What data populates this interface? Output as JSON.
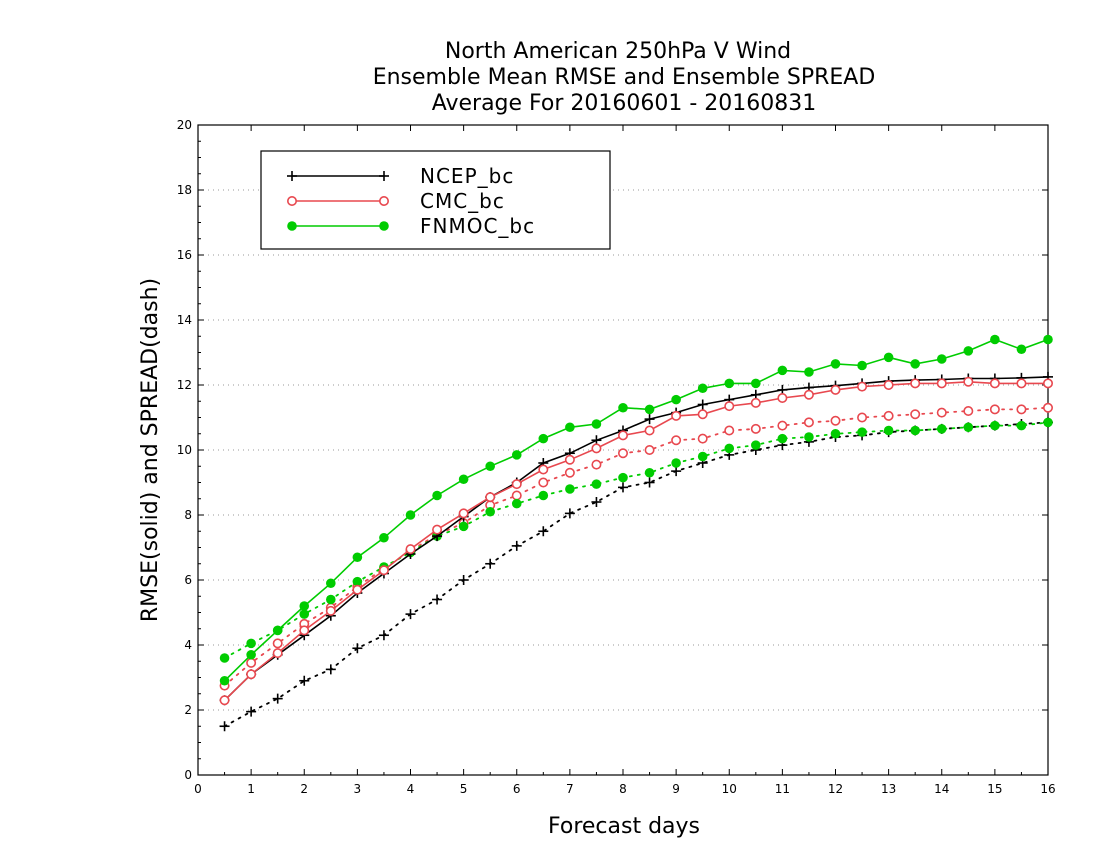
{
  "chart_data": {
    "type": "line",
    "title": [
      "North American 250hPa V Wind",
      "Ensemble Mean RMSE and Ensemble SPREAD",
      "Average For 20160601 - 20160831"
    ],
    "xlabel": "Forecast days",
    "ylabel": "RMSE(solid) and SPREAD(dash)",
    "xlim": [
      0,
      16
    ],
    "ylim": [
      0,
      20
    ],
    "xticks": [
      "0",
      "1",
      "2",
      "3",
      "4",
      "5",
      "6",
      "7",
      "8",
      "9",
      "10",
      "11",
      "12",
      "13",
      "14",
      "15",
      "16"
    ],
    "yticks": [
      "0",
      "2",
      "4",
      "6",
      "8",
      "10",
      "12",
      "14",
      "16",
      "18",
      "20"
    ],
    "grid": true,
    "legend_position": "top-left",
    "x": [
      0.5,
      1,
      1.5,
      2,
      2.5,
      3,
      3.5,
      4,
      4.5,
      5,
      5.5,
      6,
      6.5,
      7,
      7.5,
      8,
      8.5,
      9,
      9.5,
      10,
      10.5,
      11,
      11.5,
      12,
      12.5,
      13,
      13.5,
      14,
      14.5,
      15,
      15.5,
      16
    ],
    "series": [
      {
        "name": "NCEP_bc",
        "kind": "rmse",
        "line": "solid",
        "marker": "plus",
        "color": "#000000",
        "values": [
          2.3,
          3.1,
          3.7,
          4.3,
          4.9,
          5.6,
          6.2,
          6.8,
          7.35,
          7.95,
          8.55,
          9.0,
          9.6,
          9.9,
          10.3,
          10.6,
          10.95,
          11.15,
          11.4,
          11.55,
          11.7,
          11.85,
          11.92,
          11.98,
          12.05,
          12.12,
          12.15,
          12.17,
          12.2,
          12.2,
          12.22,
          12.25
        ]
      },
      {
        "name": "CMC_bc",
        "kind": "rmse",
        "line": "solid",
        "marker": "circle",
        "color": "#e8484f",
        "values": [
          2.3,
          3.1,
          3.75,
          4.45,
          5.05,
          5.7,
          6.3,
          6.95,
          7.55,
          8.05,
          8.55,
          8.95,
          9.4,
          9.7,
          10.05,
          10.45,
          10.6,
          11.05,
          11.1,
          11.35,
          11.45,
          11.6,
          11.7,
          11.85,
          11.95,
          12.0,
          12.05,
          12.05,
          12.1,
          12.05,
          12.05,
          12.05
        ]
      },
      {
        "name": "FNMOC_bc",
        "kind": "rmse",
        "line": "solid",
        "marker": "dot",
        "color": "#00cc00",
        "values": [
          2.9,
          3.7,
          4.45,
          5.2,
          5.9,
          6.7,
          7.3,
          8.0,
          8.6,
          9.1,
          9.5,
          9.85,
          10.35,
          10.7,
          10.8,
          11.3,
          11.25,
          11.55,
          11.9,
          12.05,
          12.05,
          12.45,
          12.4,
          12.65,
          12.6,
          12.85,
          12.65,
          12.8,
          13.05,
          13.4,
          13.1,
          13.4
        ]
      },
      {
        "name": "NCEP_bc",
        "kind": "spread",
        "line": "dash",
        "marker": "plus",
        "color": "#000000",
        "values": [
          1.5,
          1.95,
          2.35,
          2.9,
          3.25,
          3.9,
          4.3,
          4.95,
          5.4,
          6.0,
          6.5,
          7.05,
          7.5,
          8.05,
          8.4,
          8.85,
          9.0,
          9.35,
          9.6,
          9.85,
          10.0,
          10.15,
          10.25,
          10.4,
          10.45,
          10.55,
          10.6,
          10.65,
          10.7,
          10.75,
          10.8,
          10.85
        ]
      },
      {
        "name": "CMC_bc",
        "kind": "spread",
        "line": "dash",
        "marker": "circle",
        "color": "#e8484f",
        "values": [
          2.75,
          3.45,
          4.05,
          4.65,
          5.15,
          5.8,
          6.35,
          6.9,
          7.4,
          7.75,
          8.3,
          8.6,
          9.0,
          9.3,
          9.55,
          9.9,
          10.0,
          10.3,
          10.35,
          10.6,
          10.65,
          10.75,
          10.85,
          10.9,
          11.0,
          11.05,
          11.1,
          11.15,
          11.2,
          11.25,
          11.25,
          11.3
        ]
      },
      {
        "name": "FNMOC_bc",
        "kind": "spread",
        "line": "dash",
        "marker": "dot",
        "color": "#00cc00",
        "values": [
          3.6,
          4.05,
          4.45,
          4.95,
          5.4,
          5.95,
          6.4,
          6.85,
          7.35,
          7.65,
          8.1,
          8.35,
          8.6,
          8.8,
          8.95,
          9.15,
          9.3,
          9.6,
          9.8,
          10.05,
          10.15,
          10.35,
          10.4,
          10.5,
          10.55,
          10.6,
          10.6,
          10.65,
          10.7,
          10.75,
          10.75,
          10.85
        ]
      }
    ]
  },
  "legend": [
    {
      "label": "NCEP_bc",
      "marker": "plus",
      "color": "#000000"
    },
    {
      "label": "CMC_bc",
      "marker": "circle",
      "color": "#e8484f"
    },
    {
      "label": "FNMOC_bc",
      "marker": "dot",
      "color": "#00cc00"
    }
  ]
}
